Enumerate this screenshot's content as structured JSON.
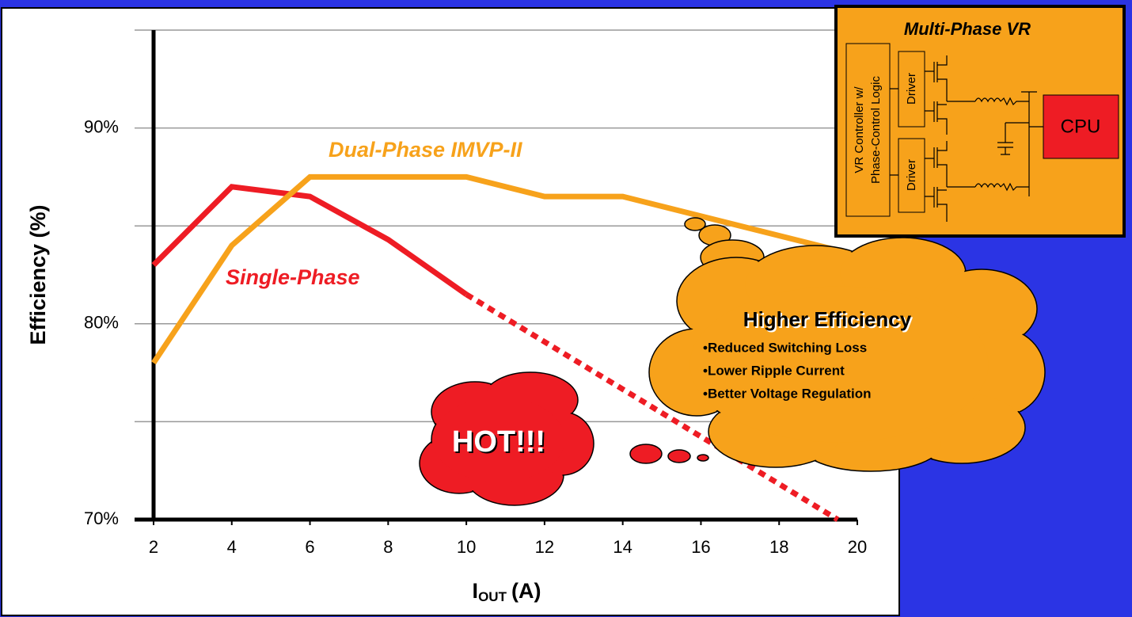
{
  "chart_data": {
    "type": "line",
    "xlim": [
      2,
      20
    ],
    "ylim": [
      70,
      95
    ],
    "xticks": [
      2,
      4,
      6,
      8,
      10,
      12,
      14,
      16,
      18,
      20
    ],
    "yticks": [
      {
        "value": 70,
        "label": "70%"
      },
      {
        "value": 80,
        "label": "80%"
      },
      {
        "value": 90,
        "label": "90%"
      }
    ],
    "yticks_minor": [
      75,
      85,
      95
    ],
    "grid": true,
    "y_label": "Efficiency (%)",
    "x_label": {
      "main": "I",
      "sub": "OUT",
      "unit": "(A)"
    },
    "series": [
      {
        "name": "Single-Phase",
        "color": "#ee1c24",
        "x": [
          2,
          4,
          6,
          8,
          10
        ],
        "values": [
          83,
          87,
          86.5,
          84.3,
          81.5
        ]
      },
      {
        "color": "#ee1c24",
        "dashed": true,
        "x": [
          10,
          19.5
        ],
        "values": [
          81.5,
          70
        ]
      },
      {
        "name": "Dual-Phase IMVP-II",
        "color": "#f7a21b",
        "x": [
          2,
          4,
          6,
          10,
          12,
          14,
          20
        ],
        "values": [
          78,
          84,
          87.5,
          87.5,
          86.5,
          86.5,
          83.5
        ]
      }
    ]
  },
  "hot_cloud": {
    "text": "HOT!!!"
  },
  "efficiency_cloud": {
    "title": "Higher Efficiency",
    "bullets": [
      "•Reduced Switching Loss",
      "•Lower Ripple Current",
      "•Better Voltage Regulation"
    ]
  },
  "inset": {
    "title": "Multi-Phase VR",
    "controller": [
      "VR Controller w/",
      "Phase-Control Logic"
    ],
    "drivers": [
      "Driver",
      "Driver"
    ],
    "cpu": "CPU"
  }
}
